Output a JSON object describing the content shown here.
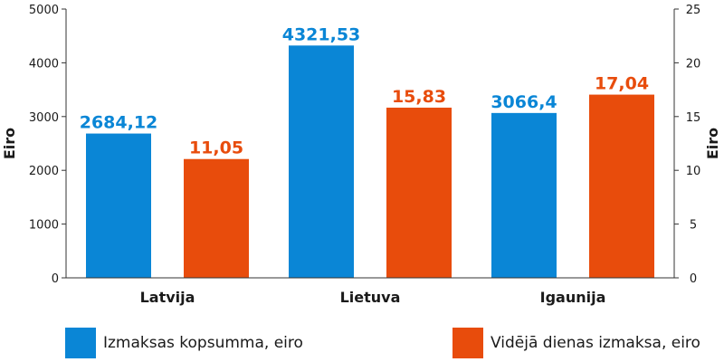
{
  "chart_data": {
    "type": "bar",
    "categories": [
      "Latvija",
      "Lietuva",
      "Igaunija"
    ],
    "series": [
      {
        "name": "Izmaksas kopsumma, eiro",
        "axis": "left",
        "color": "#0a86d6",
        "values": [
          2684.12,
          4321.53,
          3066.4
        ],
        "labels": [
          "2684,12",
          "4321,53",
          "3066,4"
        ]
      },
      {
        "name": "Vidējā dienas izmaksa, eiro",
        "axis": "right",
        "color": "#e84c0c",
        "values": [
          11.05,
          15.83,
          17.04
        ],
        "labels": [
          "11,05",
          "15,83",
          "17,04"
        ]
      }
    ],
    "ylabel": "Eiro",
    "y2label": "Eiro",
    "ylim": [
      0,
      5000
    ],
    "y2lim": [
      0,
      25
    ],
    "yticks": [
      "0",
      "1000",
      "2000",
      "3000",
      "4000",
      "5000"
    ],
    "y2ticks": [
      "0",
      "5",
      "10",
      "15",
      "20",
      "25"
    ],
    "grid": false,
    "legend_position": "bottom"
  }
}
